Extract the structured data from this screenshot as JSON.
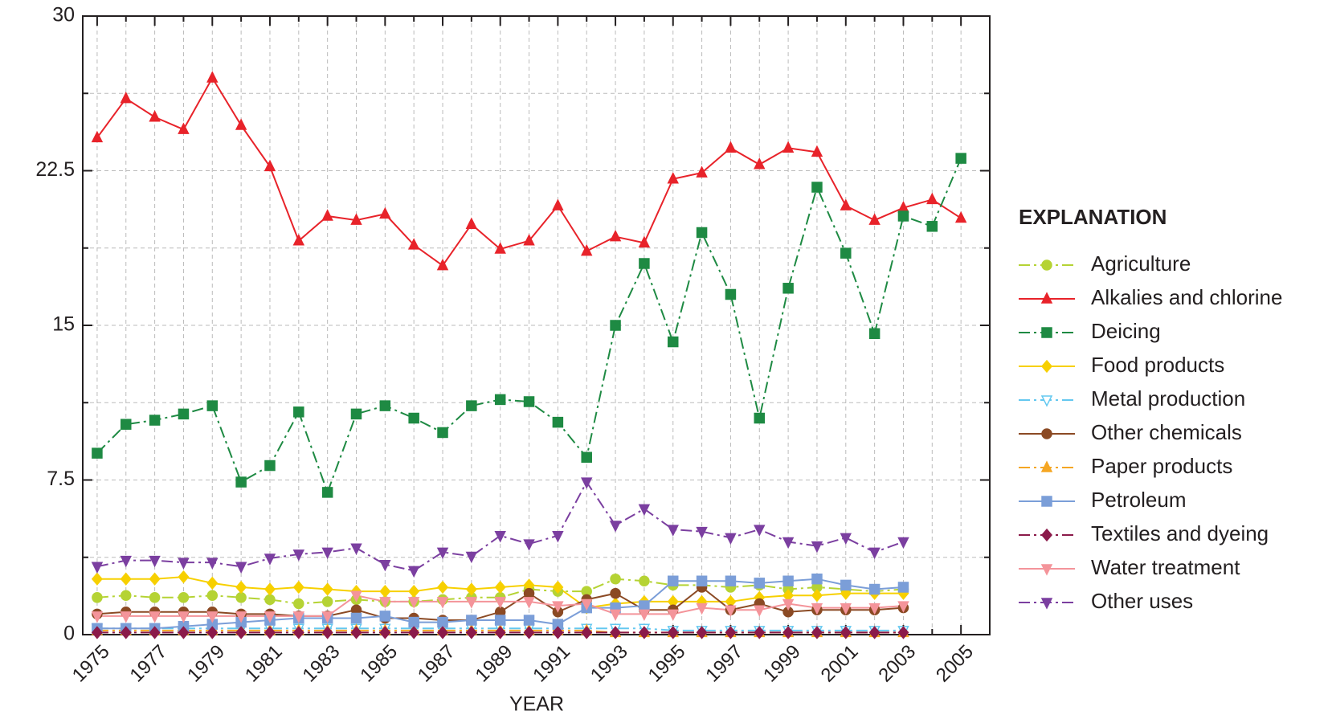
{
  "chart_data": {
    "type": "line",
    "x_label": "YEAR",
    "legend_title": "EXPLANATION",
    "legend": "right",
    "grid": true,
    "x": [
      1975,
      1976,
      1977,
      1978,
      1979,
      1980,
      1981,
      1982,
      1983,
      1984,
      1985,
      1986,
      1987,
      1988,
      1989,
      1990,
      1991,
      1992,
      1993,
      1994,
      1995,
      1996,
      1997,
      1998,
      1999,
      2000,
      2001,
      2002,
      2003,
      2004,
      2005
    ],
    "xlim": [
      1974.5,
      2006
    ],
    "xticks": [
      1975,
      1977,
      1979,
      1981,
      1983,
      1985,
      1987,
      1989,
      1991,
      1993,
      1995,
      1997,
      1999,
      2001,
      2003,
      2005
    ],
    "xticks_minor": [
      1976,
      1978,
      1980,
      1982,
      1984,
      1986,
      1988,
      1990,
      1992,
      1994,
      1996,
      1998,
      2000,
      2002,
      2004
    ],
    "ylim": [
      0,
      30
    ],
    "yticks": [
      0,
      7.5,
      15,
      22.5,
      30
    ],
    "yticks_minor": [
      3.75,
      11.25,
      18.75,
      26.25
    ],
    "series": [
      {
        "name": "Agriculture",
        "color": "#b5d334",
        "marker": "circle",
        "dashed": true,
        "values": [
          1.8,
          1.9,
          1.8,
          1.8,
          1.9,
          1.8,
          1.7,
          1.5,
          1.6,
          1.7,
          1.6,
          1.6,
          1.7,
          1.8,
          1.8,
          2.2,
          2.1,
          2.1,
          2.7,
          2.6,
          2.4,
          2.4,
          2.3,
          2.4,
          2.2,
          2.3,
          2.2,
          2.1,
          2.2,
          null,
          null
        ]
      },
      {
        "name": "Alkalies and chlorine",
        "color": "#e8232a",
        "marker": "triangle-up",
        "dashed": false,
        "values": [
          24.1,
          26.0,
          25.1,
          24.5,
          27.0,
          24.7,
          22.7,
          19.1,
          20.3,
          20.1,
          20.4,
          18.9,
          17.9,
          19.9,
          18.7,
          19.1,
          20.8,
          18.6,
          19.3,
          19.0,
          22.1,
          22.4,
          23.6,
          22.8,
          23.6,
          23.4,
          20.8,
          20.1,
          20.7,
          21.1,
          20.2
        ]
      },
      {
        "name": "Deicing",
        "color": "#1e8a43",
        "marker": "square",
        "dashed": true,
        "values": [
          8.8,
          10.2,
          10.4,
          10.7,
          11.1,
          7.4,
          8.2,
          10.8,
          6.9,
          10.7,
          11.1,
          10.5,
          9.8,
          11.1,
          11.4,
          11.3,
          10.3,
          8.6,
          15.0,
          18.0,
          14.2,
          19.5,
          16.5,
          10.5,
          16.8,
          21.7,
          18.5,
          14.6,
          20.3,
          19.8,
          23.1
        ]
      },
      {
        "name": "Food products",
        "color": "#f7d000",
        "marker": "diamond",
        "dashed": false,
        "values": [
          2.7,
          2.7,
          2.7,
          2.8,
          2.5,
          2.3,
          2.2,
          2.3,
          2.2,
          2.1,
          2.1,
          2.1,
          2.3,
          2.2,
          2.3,
          2.4,
          2.3,
          1.3,
          1.5,
          1.6,
          1.6,
          1.6,
          1.6,
          1.8,
          1.9,
          1.9,
          2.0,
          2.0,
          2.0,
          null,
          null
        ]
      },
      {
        "name": "Metal production",
        "color": "#64c8f0",
        "marker": "triangle-down-open",
        "dashed": true,
        "values": [
          0.3,
          0.3,
          0.3,
          0.3,
          0.3,
          0.3,
          0.3,
          0.3,
          0.3,
          0.3,
          0.3,
          0.3,
          0.3,
          0.3,
          0.3,
          0.3,
          0.3,
          0.3,
          0.3,
          0.3,
          0.2,
          0.2,
          0.2,
          0.2,
          0.2,
          0.2,
          0.2,
          0.2,
          0.2,
          null,
          null
        ]
      },
      {
        "name": "Other chemicals",
        "color": "#8b4a24",
        "marker": "circle",
        "dashed": false,
        "values": [
          1.0,
          1.1,
          1.1,
          1.1,
          1.1,
          1.0,
          1.0,
          0.9,
          0.9,
          1.2,
          0.8,
          0.8,
          0.7,
          0.7,
          1.1,
          2.0,
          1.1,
          1.7,
          2.0,
          1.2,
          1.2,
          2.3,
          1.2,
          1.5,
          1.1,
          1.2,
          1.2,
          1.2,
          1.3,
          null,
          null
        ]
      },
      {
        "name": "Paper products",
        "color": "#f5a623",
        "marker": "triangle-up",
        "dashed": true,
        "values": [
          0.2,
          0.2,
          0.2,
          0.2,
          0.2,
          0.2,
          0.2,
          0.2,
          0.2,
          0.2,
          0.2,
          0.2,
          0.2,
          0.2,
          0.2,
          0.2,
          0.2,
          0.2,
          0.1,
          0.1,
          0.1,
          0.1,
          0.1,
          0.1,
          0.1,
          0.1,
          0.1,
          0.1,
          0.1,
          null,
          null
        ]
      },
      {
        "name": "Petroleum",
        "color": "#7b9ed8",
        "marker": "square",
        "dashed": false,
        "values": [
          0.3,
          0.3,
          0.3,
          0.4,
          0.5,
          0.6,
          0.7,
          0.8,
          0.8,
          0.8,
          0.9,
          0.6,
          0.6,
          0.7,
          0.7,
          0.7,
          0.5,
          1.3,
          1.3,
          1.4,
          2.6,
          2.6,
          2.6,
          2.5,
          2.6,
          2.7,
          2.4,
          2.2,
          2.3,
          null,
          null
        ]
      },
      {
        "name": "Textiles and dyeing",
        "color": "#8b1a4a",
        "marker": "diamond",
        "dashed": true,
        "values": [
          0.1,
          0.1,
          0.1,
          0.1,
          0.1,
          0.1,
          0.1,
          0.1,
          0.1,
          0.1,
          0.1,
          0.1,
          0.1,
          0.1,
          0.1,
          0.1,
          0.1,
          0.1,
          0.1,
          0.1,
          0.1,
          0.1,
          0.1,
          0.1,
          0.1,
          0.1,
          0.1,
          0.1,
          0.1,
          null,
          null
        ]
      },
      {
        "name": "Water treatment",
        "color": "#f4949a",
        "marker": "triangle-down",
        "dashed": false,
        "values": [
          0.9,
          0.9,
          0.9,
          0.9,
          0.9,
          0.9,
          0.9,
          0.9,
          0.9,
          1.9,
          1.6,
          1.6,
          1.6,
          1.6,
          1.6,
          1.6,
          1.4,
          1.5,
          1.0,
          1.0,
          1.0,
          1.3,
          1.2,
          1.2,
          1.5,
          1.3,
          1.3,
          1.3,
          1.4,
          null,
          null
        ]
      },
      {
        "name": "Other uses",
        "color": "#7b3fa0",
        "marker": "triangle-down",
        "dashed": true,
        "values": [
          3.3,
          3.6,
          3.6,
          3.5,
          3.5,
          3.3,
          3.7,
          3.9,
          4.0,
          4.2,
          3.4,
          3.1,
          4.0,
          3.8,
          4.8,
          4.4,
          4.8,
          7.4,
          5.3,
          6.1,
          5.1,
          5.0,
          4.7,
          5.1,
          4.5,
          4.3,
          4.7,
          4.0,
          4.5,
          null,
          null
        ]
      }
    ]
  }
}
